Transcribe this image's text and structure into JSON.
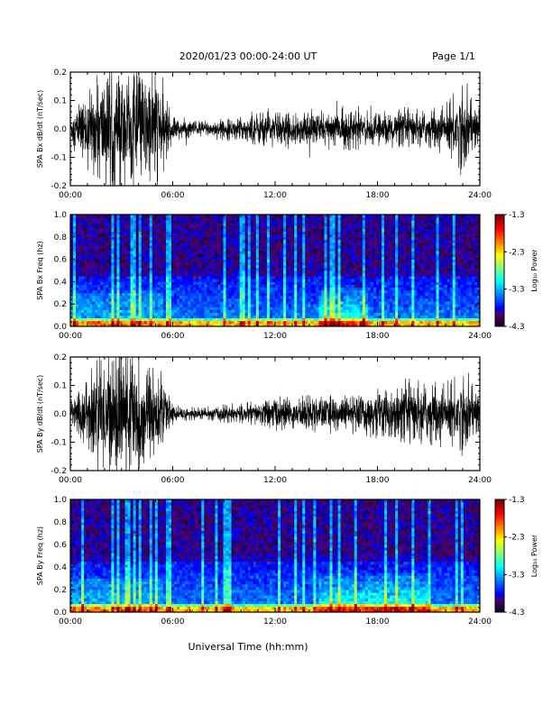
{
  "header": {
    "title": "2020/01/23  00:00-24:00 UT",
    "page": "Page 1/1"
  },
  "footer": {
    "xlabel": "Universal Time (hh:mm)"
  },
  "chart_data": [
    {
      "type": "line",
      "ylabel": "SPA Bx dB/dt (nT/sec)",
      "xlim": [
        "00:00",
        "24:00"
      ],
      "xticks": [
        "00:00",
        "06:00",
        "12:00",
        "18:00",
        "24:00"
      ],
      "ylim": [
        -0.2,
        0.2
      ],
      "yticks": [
        "-0.2",
        "-0.1",
        "0.0",
        "0.1",
        "0.2"
      ],
      "series": [
        {
          "amplitude_envelope": {
            "x_hours": [
              0,
              1,
              2,
              3,
              4,
              5,
              6,
              7,
              8,
              9,
              10,
              11,
              12,
              13,
              14,
              15,
              16,
              17,
              18,
              19,
              20,
              21,
              22,
              23,
              24
            ],
            "max_abs_dBdt": [
              0.05,
              0.12,
              0.2,
              0.2,
              0.2,
              0.2,
              0.04,
              0.03,
              0.03,
              0.03,
              0.04,
              0.06,
              0.06,
              0.05,
              0.06,
              0.06,
              0.07,
              0.06,
              0.05,
              0.06,
              0.06,
              0.06,
              0.08,
              0.15,
              0.06
            ]
          },
          "values_note": "dense waveform around 0.0"
        }
      ]
    },
    {
      "type": "heatmap",
      "ylabel": "SPA Bx Freq (hz)",
      "xlim": [
        "00:00",
        "24:00"
      ],
      "xticks": [
        "00:00",
        "06:00",
        "12:00",
        "18:00",
        "24:00"
      ],
      "ylim": [
        0.0,
        1.0
      ],
      "yticks": [
        "0.0",
        "0.2",
        "0.4",
        "0.6",
        "0.8",
        "1.0"
      ],
      "colorbar": {
        "label": "Log₁₀ Power",
        "range": [
          -4.3,
          -1.3
        ],
        "ticks": [
          "-1.3",
          "-2.3",
          "-3.3",
          "-4.3"
        ]
      },
      "enhanced_band_hours": [
        [
          14.5,
          17.5
        ]
      ],
      "enhanced_band_freq_max": 0.35
    },
    {
      "type": "line",
      "ylabel": "SPA By dB/dt (nT/sec)",
      "xlim": [
        "00:00",
        "24:00"
      ],
      "xticks": [
        "00:00",
        "06:00",
        "12:00",
        "18:00",
        "24:00"
      ],
      "ylim": [
        -0.2,
        0.2
      ],
      "yticks": [
        "-0.2",
        "-0.1",
        "0.0",
        "0.1",
        "0.2"
      ],
      "series": [
        {
          "amplitude_envelope": {
            "x_hours": [
              0,
              1,
              2,
              3,
              4,
              5,
              6,
              7,
              8,
              9,
              10,
              11,
              12,
              13,
              14,
              15,
              16,
              17,
              18,
              19,
              20,
              21,
              22,
              23,
              24
            ],
            "max_abs_dBdt": [
              0.06,
              0.12,
              0.2,
              0.2,
              0.2,
              0.15,
              0.03,
              0.02,
              0.02,
              0.03,
              0.03,
              0.04,
              0.06,
              0.05,
              0.06,
              0.06,
              0.06,
              0.07,
              0.08,
              0.09,
              0.1,
              0.1,
              0.1,
              0.13,
              0.08
            ]
          },
          "values_note": "dense waveform around 0.0"
        }
      ]
    },
    {
      "type": "heatmap",
      "ylabel": "SPA By Freq (hz)",
      "xlim": [
        "00:00",
        "24:00"
      ],
      "xticks": [
        "00:00",
        "06:00",
        "12:00",
        "18:00",
        "24:00"
      ],
      "ylim": [
        0.0,
        1.0
      ],
      "yticks": [
        "0.0",
        "0.2",
        "0.4",
        "0.6",
        "0.8",
        "1.0"
      ],
      "colorbar": {
        "label": "Log₁₀ Power",
        "range": [
          -4.3,
          -1.3
        ],
        "ticks": [
          "-1.3",
          "-2.3",
          "-3.3",
          "-4.3"
        ]
      },
      "enhanced_band_hours": [
        [
          14.5,
          21.0
        ]
      ],
      "enhanced_band_freq_max": 0.35
    }
  ]
}
